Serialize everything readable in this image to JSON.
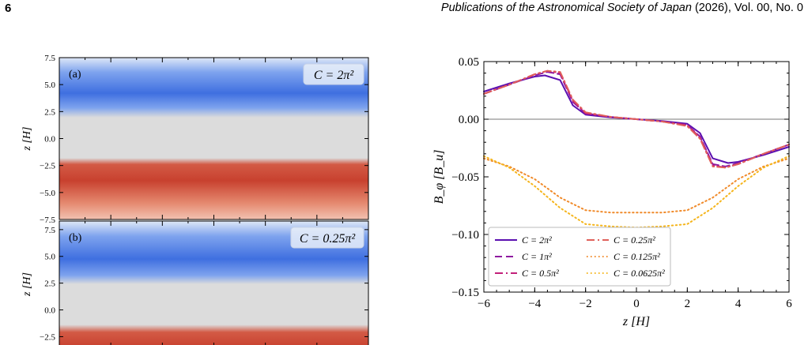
{
  "header": {
    "page_number": "6",
    "journal_name": "Publications of the Astronomical Society of Japan",
    "journal_rest": " (2026), Vol. 00, No. 0"
  },
  "colors": {
    "blue_band": "#3f6fe0",
    "red_band": "#c8412f",
    "mid_gray": "#dcdcdc"
  },
  "panels": {
    "a": {
      "tag": "(a)",
      "label": "C = 2π²",
      "yticks": [
        "7.5",
        "5.0",
        "2.5",
        "0.0",
        "−2.5",
        "−5.0",
        "−7.5"
      ]
    },
    "b": {
      "tag": "(b)",
      "label": "C = 0.25π²",
      "yticks": [
        "7.5",
        "5.0",
        "2.5",
        "0.0",
        "−2.5"
      ]
    },
    "ylabel": "z [H]"
  },
  "chart_data": {
    "type": "line",
    "xlabel": "z [H]",
    "ylabel": "B_φ [B_u]",
    "xlim": [
      -6,
      6
    ],
    "ylim": [
      -0.15,
      0.05
    ],
    "xticks": [
      "−6",
      "−4",
      "−2",
      "0",
      "2",
      "4",
      "6"
    ],
    "yticks": [
      "0.05",
      "0.00",
      "−0.05",
      "−0.10",
      "−0.15"
    ],
    "grid": false,
    "legend_position": "lower-left",
    "series": [
      {
        "name": "C = 2π²",
        "color": "#5b0fb0",
        "dash": "solid",
        "x": [
          -6,
          -5,
          -4,
          -3.6,
          -3,
          -2.5,
          -2,
          -1,
          0,
          1,
          2,
          2.5,
          3,
          3.6,
          4,
          5,
          6
        ],
        "y": [
          0.024,
          0.031,
          0.037,
          0.038,
          0.034,
          0.012,
          0.004,
          0.0015,
          0,
          -0.0015,
          -0.004,
          -0.012,
          -0.034,
          -0.038,
          -0.037,
          -0.031,
          -0.024
        ]
      },
      {
        "name": "C = 1π²",
        "color": "#8e1aa0",
        "dash": "dashed",
        "x": [
          -6,
          -5,
          -4,
          -3.5,
          -3,
          -2.5,
          -2,
          -1,
          0,
          1,
          2,
          2.5,
          3,
          3.5,
          4,
          5,
          6
        ],
        "y": [
          0.022,
          0.03,
          0.038,
          0.041,
          0.039,
          0.015,
          0.005,
          0.002,
          0,
          -0.002,
          -0.005,
          -0.015,
          -0.039,
          -0.041,
          -0.038,
          -0.03,
          -0.022
        ]
      },
      {
        "name": "C = 0.5π²",
        "color": "#c21f7a",
        "dash": "dashdot",
        "x": [
          -6,
          -5,
          -4,
          -3.5,
          -3,
          -2.5,
          -2,
          -1,
          0,
          1,
          2,
          2.5,
          3,
          3.5,
          4,
          5,
          6
        ],
        "y": [
          0.022,
          0.03,
          0.039,
          0.042,
          0.04,
          0.016,
          0.005,
          0.002,
          0,
          -0.002,
          -0.005,
          -0.016,
          -0.04,
          -0.042,
          -0.039,
          -0.03,
          -0.022
        ]
      },
      {
        "name": "C = 0.25π²",
        "color": "#e0605a",
        "dash": "dashdot",
        "x": [
          -6,
          -5,
          -4,
          -3.5,
          -3,
          -2.5,
          -2,
          -1,
          0,
          1,
          2,
          2.5,
          3,
          3.5,
          4,
          5,
          6
        ],
        "y": [
          0.022,
          0.03,
          0.039,
          0.042,
          0.041,
          0.017,
          0.006,
          0.002,
          0,
          -0.002,
          -0.006,
          -0.017,
          -0.041,
          -0.042,
          -0.039,
          -0.03,
          -0.022
        ]
      },
      {
        "name": "C = 0.125π²",
        "color": "#f08a2a",
        "dash": "dotted",
        "x": [
          -6,
          -5,
          -4,
          -3,
          -2,
          -1,
          0,
          1,
          2,
          3,
          4,
          5,
          6
        ],
        "y": [
          -0.034,
          -0.041,
          -0.052,
          -0.068,
          -0.079,
          -0.081,
          -0.081,
          -0.081,
          -0.079,
          -0.068,
          -0.052,
          -0.041,
          -0.034
        ]
      },
      {
        "name": "C = 0.0625π²",
        "color": "#f5b51c",
        "dash": "dotted",
        "x": [
          -6,
          -5,
          -4,
          -3,
          -2,
          -1,
          0,
          1,
          2,
          3,
          4,
          5,
          6
        ],
        "y": [
          -0.032,
          -0.042,
          -0.058,
          -0.077,
          -0.091,
          -0.093,
          -0.094,
          -0.093,
          -0.091,
          -0.077,
          -0.058,
          -0.042,
          -0.032
        ]
      }
    ]
  }
}
